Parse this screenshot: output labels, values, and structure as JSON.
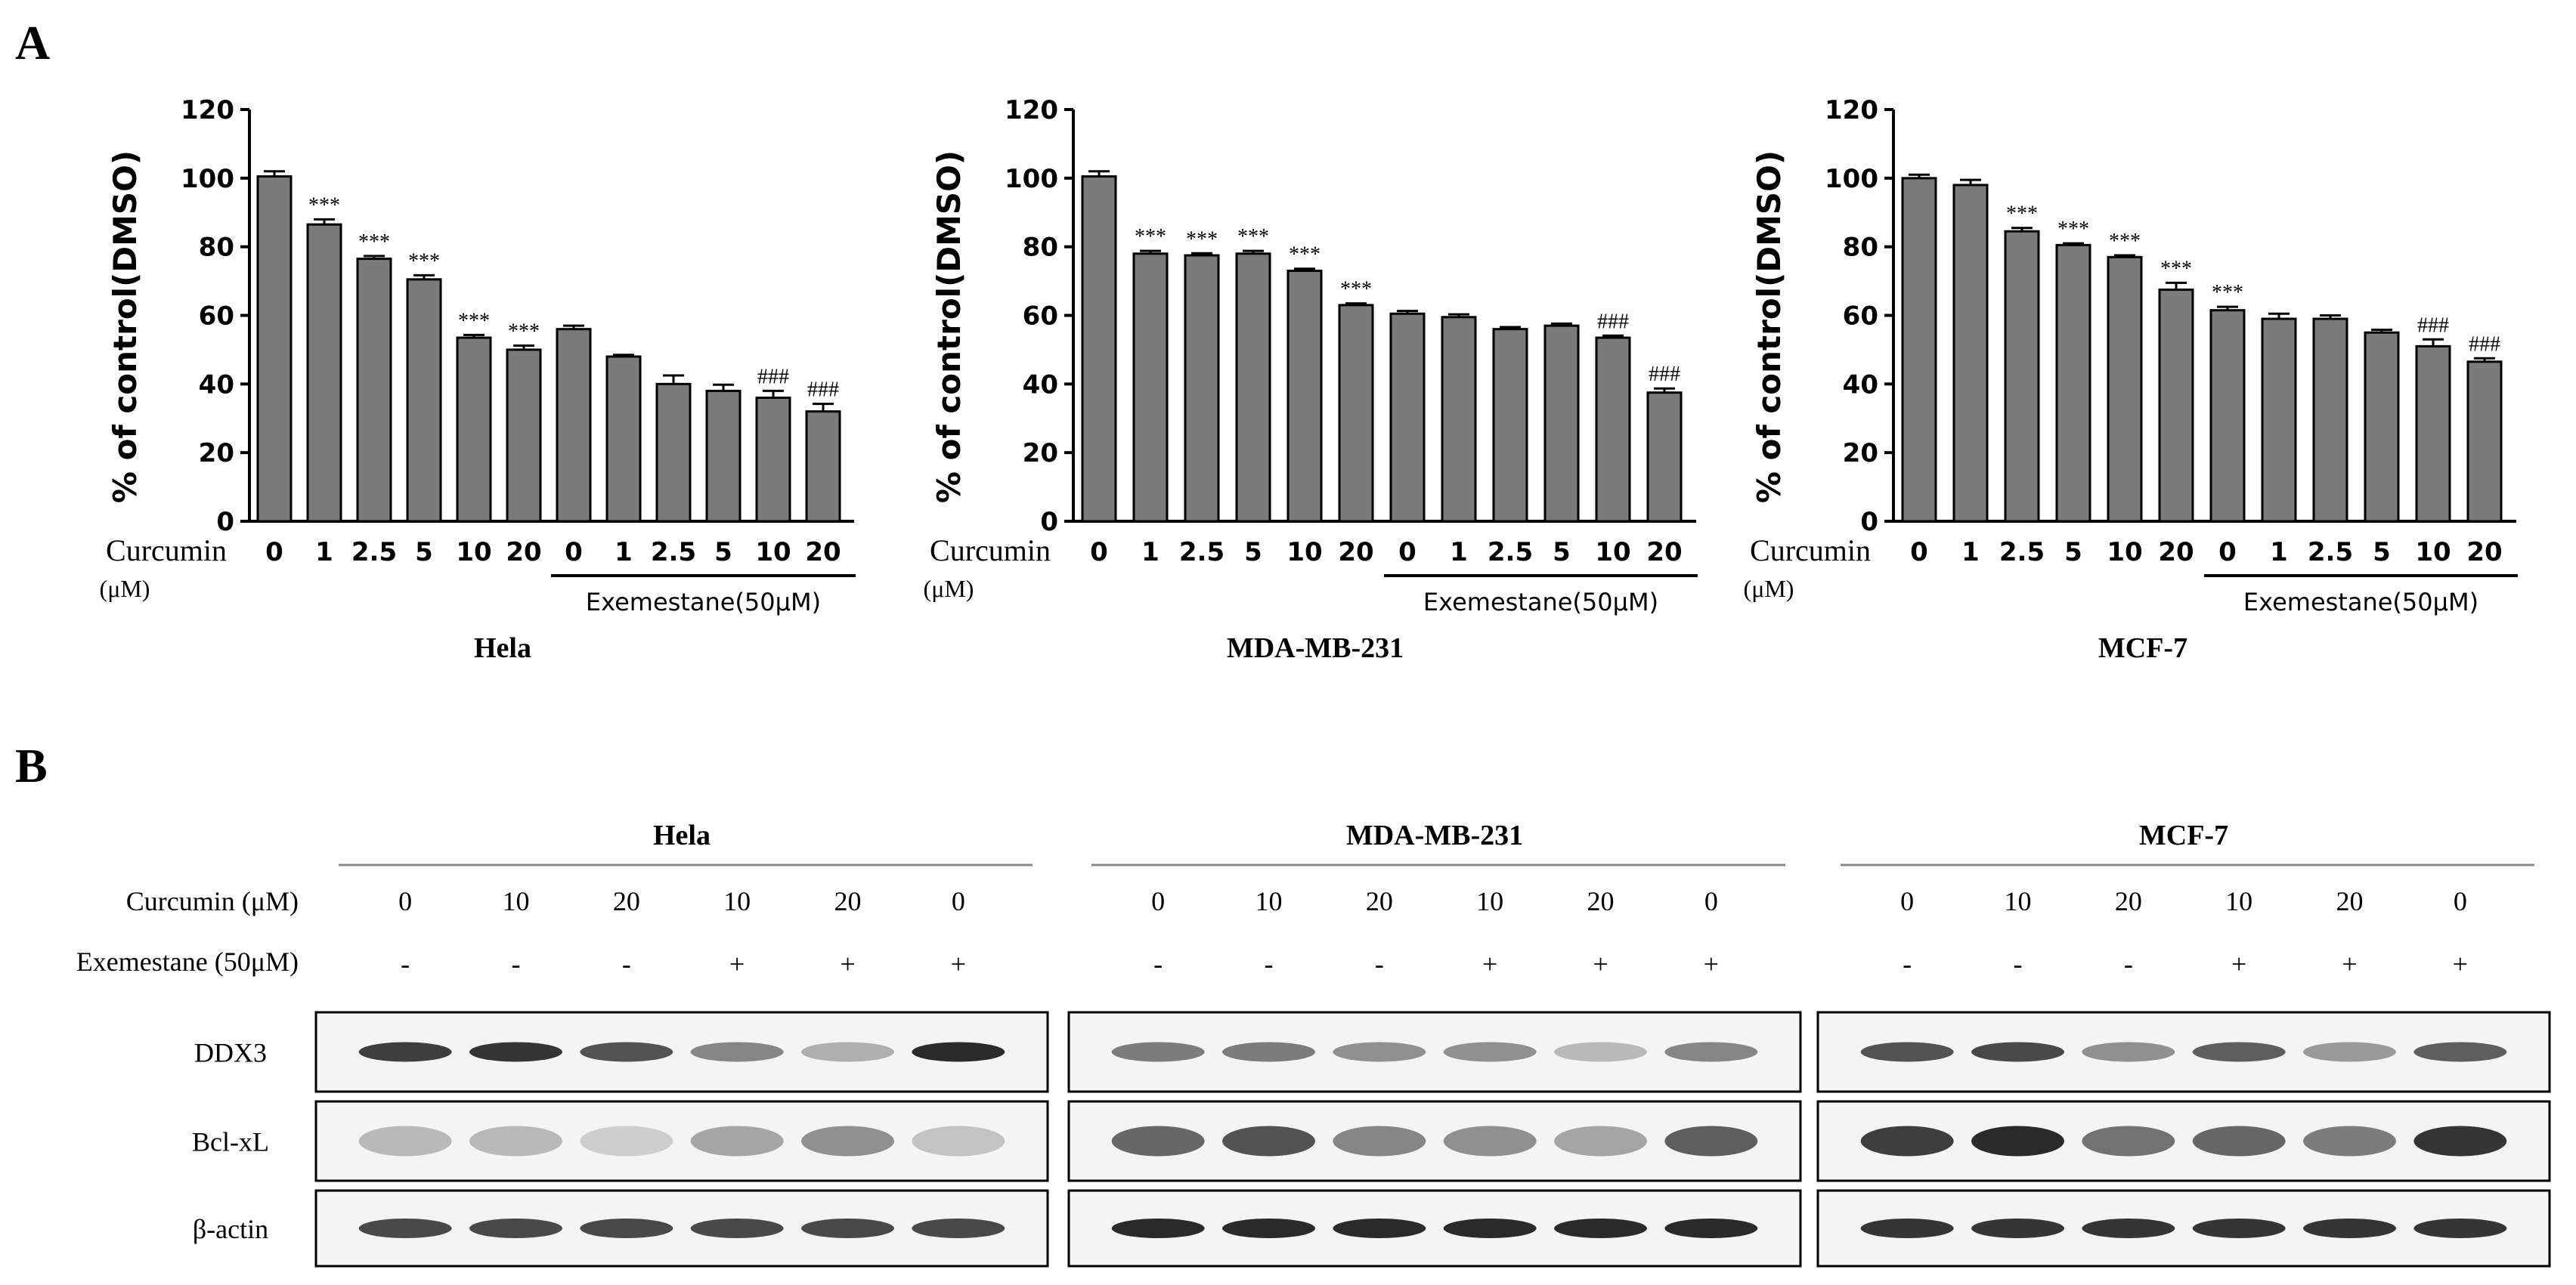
{
  "panel_a_label": "A",
  "panel_b_label": "B",
  "chart_data": [
    {
      "type": "bar",
      "title": "Hela",
      "ylabel": "% of control(DMSO)",
      "xlabel": "Curcumin",
      "xlabel_unit": "(μM)",
      "ylim": [
        0,
        120
      ],
      "yticks": [
        "0",
        "20",
        "40",
        "60",
        "80",
        "100",
        "120"
      ],
      "categories": [
        "0",
        "1",
        "2.5",
        "5",
        "10",
        "20",
        "0",
        "1",
        "2.5",
        "5",
        "10",
        "20"
      ],
      "values": [
        100.5,
        86.5,
        76.5,
        70.5,
        53.5,
        50,
        56,
        48,
        40,
        38,
        36,
        32
      ],
      "errors": [
        1.5,
        1.5,
        0.8,
        1.2,
        0.8,
        1.2,
        1,
        0.5,
        2.5,
        1.8,
        2,
        2.2
      ],
      "annotations": [
        "",
        "***",
        "***",
        "***",
        "***",
        "***",
        "",
        "",
        "",
        "",
        "###",
        "###"
      ],
      "group_label": "Exemestane(50μM)",
      "group_start_index": 6,
      "bar_color": "#7a7a7a"
    },
    {
      "type": "bar",
      "title": "MDA-MB-231",
      "ylabel": "% of control(DMSO)",
      "xlabel": "Curcumin",
      "xlabel_unit": "(μM)",
      "ylim": [
        0,
        120
      ],
      "yticks": [
        "0",
        "20",
        "40",
        "60",
        "80",
        "100",
        "120"
      ],
      "categories": [
        "0",
        "1",
        "2.5",
        "5",
        "10",
        "20",
        "0",
        "1",
        "2.5",
        "5",
        "10",
        "20"
      ],
      "values": [
        100.5,
        78,
        77.5,
        78,
        73,
        63,
        60.5,
        59.5,
        56,
        57,
        53.5,
        37.5
      ],
      "errors": [
        1.5,
        0.8,
        0.6,
        0.8,
        0.6,
        0.5,
        0.8,
        0.8,
        0.6,
        0.6,
        0.6,
        1.2
      ],
      "annotations": [
        "",
        "***",
        "***",
        "***",
        "***",
        "***",
        "",
        "",
        "",
        "",
        "###",
        "###"
      ],
      "group_label": "Exemestane(50μM)",
      "group_start_index": 6,
      "bar_color": "#7a7a7a"
    },
    {
      "type": "bar",
      "title": "MCF-7",
      "ylabel": "% of control(DMSO)",
      "xlabel": "Curcumin",
      "xlabel_unit": "(μM)",
      "ylim": [
        0,
        120
      ],
      "yticks": [
        "0",
        "20",
        "40",
        "60",
        "80",
        "100",
        "120"
      ],
      "categories": [
        "0",
        "1",
        "2.5",
        "5",
        "10",
        "20",
        "0",
        "1",
        "2.5",
        "5",
        "10",
        "20"
      ],
      "values": [
        100,
        98,
        84.5,
        80.5,
        77,
        67.5,
        61.5,
        59,
        59,
        55,
        51,
        46.5
      ],
      "errors": [
        1,
        1.5,
        1,
        0.5,
        0.5,
        2,
        1,
        1.5,
        1,
        0.8,
        2,
        1
      ],
      "annotations": [
        "",
        "",
        "***",
        "***",
        "***",
        "***",
        "***",
        "",
        "",
        "",
        "###",
        "###"
      ],
      "group_label": "Exemestane(50μM)",
      "group_start_index": 6,
      "bar_color": "#7a7a7a"
    }
  ],
  "western_blot": {
    "curcumin_label": "Curcumin (μM)",
    "exemestane_label": "Exemestane (50μM)",
    "cell_lines": [
      {
        "name": "Hela",
        "curcumin": [
          "0",
          "10",
          "20",
          "10",
          "20",
          "0"
        ],
        "exemestane": [
          "-",
          "-",
          "-",
          "+",
          "+",
          "+"
        ],
        "intensity": {
          "DDX3": [
            0.85,
            0.9,
            0.75,
            0.5,
            0.3,
            0.95
          ],
          "Bcl-xL": [
            0.25,
            0.25,
            0.15,
            0.35,
            0.45,
            0.2
          ],
          "β-actin": [
            0.8,
            0.8,
            0.8,
            0.8,
            0.8,
            0.8
          ]
        }
      },
      {
        "name": "MDA-MB-231",
        "curcumin": [
          "0",
          "10",
          "20",
          "10",
          "20",
          "0"
        ],
        "exemestane": [
          "-",
          "-",
          "-",
          "+",
          "+",
          "+"
        ],
        "intensity": {
          "DDX3": [
            0.55,
            0.55,
            0.45,
            0.45,
            0.25,
            0.5
          ],
          "Bcl-xL": [
            0.65,
            0.75,
            0.5,
            0.45,
            0.35,
            0.7
          ],
          "β-actin": [
            0.95,
            0.95,
            0.95,
            0.95,
            0.95,
            0.95
          ]
        }
      },
      {
        "name": "MCF-7",
        "curcumin": [
          "0",
          "10",
          "20",
          "10",
          "20",
          "0"
        ],
        "exemestane": [
          "-",
          "-",
          "-",
          "+",
          "+",
          "+"
        ],
        "intensity": {
          "DDX3": [
            0.75,
            0.8,
            0.45,
            0.7,
            0.4,
            0.7
          ],
          "Bcl-xL": [
            0.85,
            0.95,
            0.6,
            0.65,
            0.55,
            0.9
          ],
          "β-actin": [
            0.9,
            0.9,
            0.9,
            0.9,
            0.9,
            0.9
          ]
        }
      }
    ],
    "proteins": [
      "DDX3",
      "Bcl-xL",
      "β-actin"
    ]
  }
}
